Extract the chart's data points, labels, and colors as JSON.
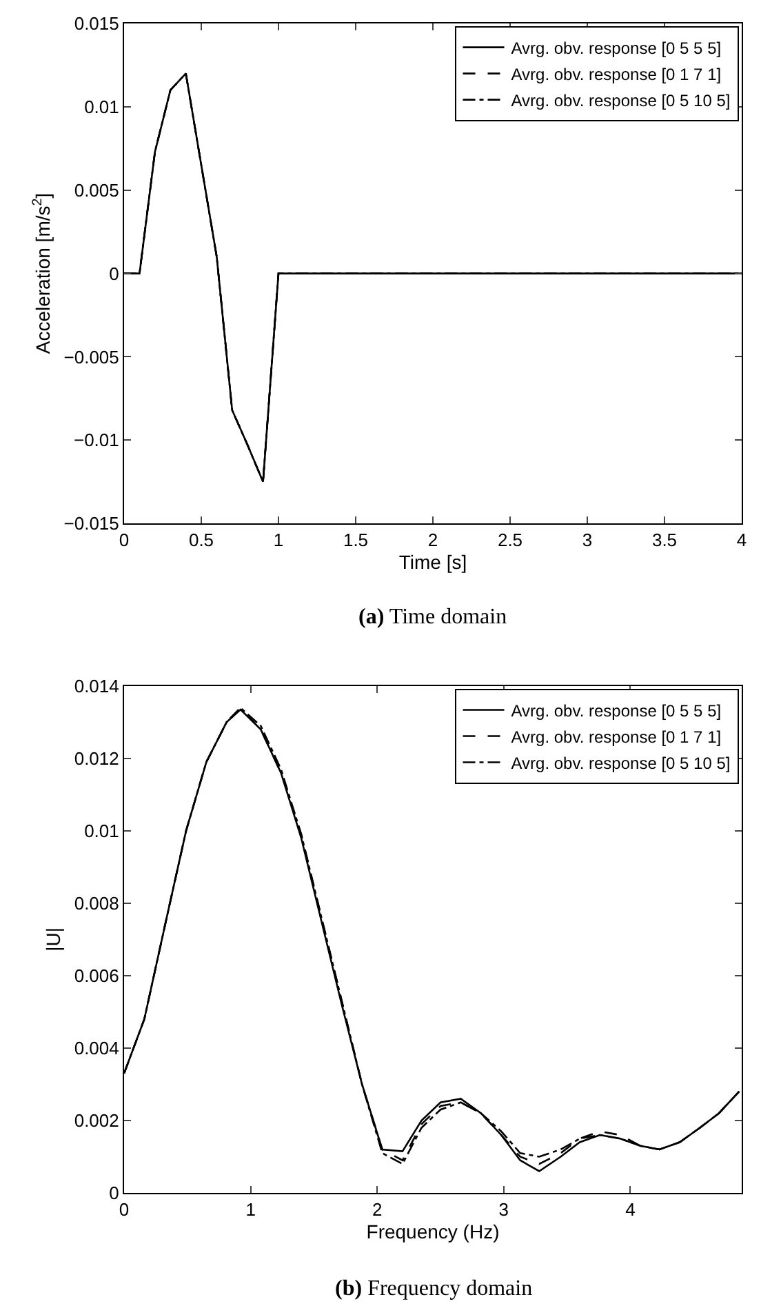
{
  "chart_data": [
    {
      "type": "line",
      "xlabel": "Time [s]",
      "ylabel": "Acceleration [m/s$^{2}$]",
      "annotations": [
        "(a) Time domain"
      ],
      "legend": "top right",
      "grid": false,
      "xlim": [
        0,
        4
      ],
      "xticks": [
        0,
        0.5,
        1,
        1.5,
        2,
        2.5,
        3,
        3.5,
        4
      ],
      "ylim": [
        -0.015,
        0.015
      ],
      "yticks": [
        -0.015,
        -0.01,
        -0.005,
        0,
        0.005,
        0.01,
        0.015
      ],
      "x": [
        0,
        0.1,
        0.2,
        0.3,
        0.4,
        0.5,
        0.6,
        0.7,
        0.8,
        0.9,
        1.0,
        4.0
      ],
      "series": [
        {
          "name": "Avrg. obv. response [0 5 5 5]",
          "color": "#000000",
          "line_style": "solid",
          "values": [
            0,
            0,
            0.0073,
            0.011,
            0.012,
            0.0065,
            0.001,
            -0.0082,
            -0.0103,
            -0.0125,
            0,
            0
          ]
        },
        {
          "name": "Avrg. obv. response [0 1 7 1]",
          "color": "#000000",
          "line_style": "dashed",
          "values": [
            0,
            0,
            0.0073,
            0.011,
            0.012,
            0.0065,
            0.001,
            -0.0082,
            -0.0103,
            -0.0125,
            0,
            0
          ]
        },
        {
          "name": "Avrg. obv. response [0 5 10 5]",
          "color": "#000000",
          "line_style": "dashdot",
          "values": [
            0,
            0,
            0.0073,
            0.011,
            0.012,
            0.0065,
            0.001,
            -0.0082,
            -0.0103,
            -0.0125,
            0,
            0
          ]
        }
      ]
    },
    {
      "type": "line",
      "xlabel": "Frequency (Hz)",
      "ylabel": "|U|",
      "annotations": [
        "(b) Frequency domain"
      ],
      "legend": "top right",
      "grid": false,
      "xlim": [
        0,
        4.88
      ],
      "xticks": [
        0,
        1,
        2,
        3,
        4
      ],
      "ylim": [
        0,
        0.014
      ],
      "yticks": [
        0,
        0.002,
        0.004,
        0.006,
        0.008,
        0.01,
        0.012,
        0.014
      ],
      "x": [
        0,
        0.16,
        0.33,
        0.49,
        0.65,
        0.81,
        0.92,
        1.08,
        1.24,
        1.4,
        1.56,
        1.72,
        1.88,
        2.04,
        2.2,
        2.35,
        2.5,
        2.66,
        2.82,
        2.98,
        3.13,
        3.28,
        3.45,
        3.6,
        3.76,
        3.92,
        4.08,
        4.23,
        4.39,
        4.55,
        4.7,
        4.86
      ],
      "series": [
        {
          "name": "Avrg. obv. response [0 5 5 5]",
          "color": "#000000",
          "line_style": "solid",
          "values": [
            0.0033,
            0.0048,
            0.0075,
            0.01,
            0.0119,
            0.013,
            0.01335,
            0.0128,
            0.0116,
            0.0098,
            0.0075,
            0.0052,
            0.003,
            0.0012,
            0.00115,
            0.002,
            0.0025,
            0.0026,
            0.0022,
            0.0016,
            0.0009,
            0.0006,
            0.001,
            0.0014,
            0.0016,
            0.0015,
            0.0013,
            0.0012,
            0.0014,
            0.0018,
            0.0022,
            0.0028
          ]
        },
        {
          "name": "Avrg. obv. response [0 1 7 1]",
          "color": "#000000",
          "line_style": "dashed",
          "values": [
            0.0033,
            0.0048,
            0.0075,
            0.01,
            0.0119,
            0.013,
            0.0134,
            0.0128,
            0.0116,
            0.0099,
            0.0076,
            0.0053,
            0.003,
            0.0012,
            0.0009,
            0.0019,
            0.0024,
            0.0025,
            0.0022,
            0.0016,
            0.001,
            0.0008,
            0.0011,
            0.0015,
            0.0017,
            0.0016,
            0.0013,
            0.0012,
            0.0014,
            0.0018,
            0.0022,
            0.0028
          ]
        },
        {
          "name": "Avrg. obv. response [0 5 10 5]",
          "color": "#000000",
          "line_style": "dashdot",
          "values": [
            0.0033,
            0.0048,
            0.0075,
            0.01,
            0.0119,
            0.013,
            0.0134,
            0.0129,
            0.0117,
            0.0099,
            0.0076,
            0.0053,
            0.003,
            0.0011,
            0.0008,
            0.0018,
            0.0023,
            0.0025,
            0.0022,
            0.0017,
            0.0011,
            0.001,
            0.0012,
            0.0015,
            0.0016,
            0.0015,
            0.0013,
            0.0012,
            0.0014,
            0.0018,
            0.0022,
            0.0028
          ]
        }
      ]
    }
  ]
}
